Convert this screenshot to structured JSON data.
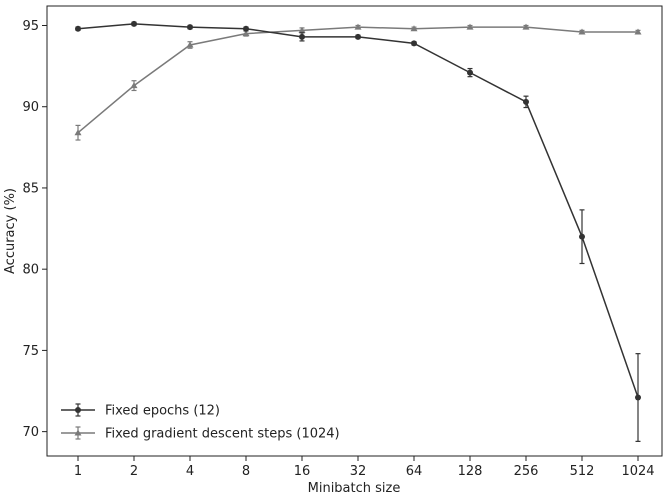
{
  "chart_data": {
    "type": "line",
    "title": "",
    "xlabel": "Minibatch size",
    "ylabel": "Accuracy (%)",
    "categories": [
      "1",
      "2",
      "4",
      "8",
      "16",
      "32",
      "64",
      "128",
      "256",
      "512",
      "1024"
    ],
    "ylim": [
      68.5,
      96.2
    ],
    "yticks": [
      70,
      75,
      80,
      85,
      90,
      95
    ],
    "grid": false,
    "legend_position": "lower-left",
    "series": [
      {
        "name": "Fixed epochs (12)",
        "color": "#333333",
        "marker": "circle",
        "values": [
          94.8,
          95.1,
          94.9,
          94.8,
          94.3,
          94.3,
          93.9,
          92.1,
          90.3,
          82.0,
          72.1
        ],
        "errors": [
          0.1,
          0.1,
          0.1,
          0.1,
          0.25,
          0.1,
          0.1,
          0.25,
          0.35,
          1.65,
          2.7
        ]
      },
      {
        "name": "Fixed gradient descent steps (1024)",
        "color": "#7a7a7a",
        "marker": "triangle",
        "values": [
          88.4,
          91.3,
          93.8,
          94.5,
          94.7,
          94.9,
          94.8,
          94.9,
          94.9,
          94.6,
          94.6
        ],
        "errors": [
          0.45,
          0.3,
          0.2,
          0.15,
          0.15,
          0.1,
          0.1,
          0.1,
          0.1,
          0.1,
          0.1
        ]
      }
    ]
  }
}
